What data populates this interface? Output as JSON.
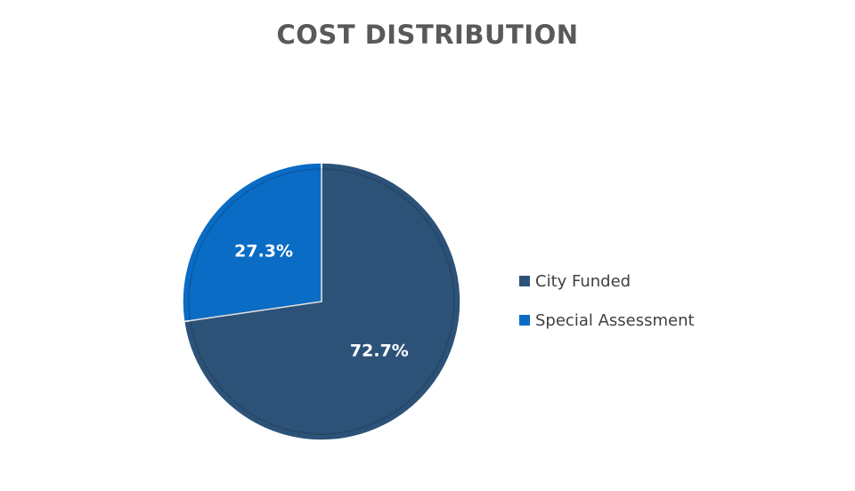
{
  "chart_data": {
    "type": "pie",
    "title": "COST DISTRIBUTION",
    "categories": [
      "City Funded",
      "Special Assessment"
    ],
    "values": [
      72.7,
      27.3
    ],
    "labels": [
      "72.7%",
      "27.3%"
    ],
    "colors": [
      "#2c5278",
      "#0a6cc4"
    ],
    "legend_position": "right",
    "start_angle": "12 o'clock, clockwise"
  }
}
